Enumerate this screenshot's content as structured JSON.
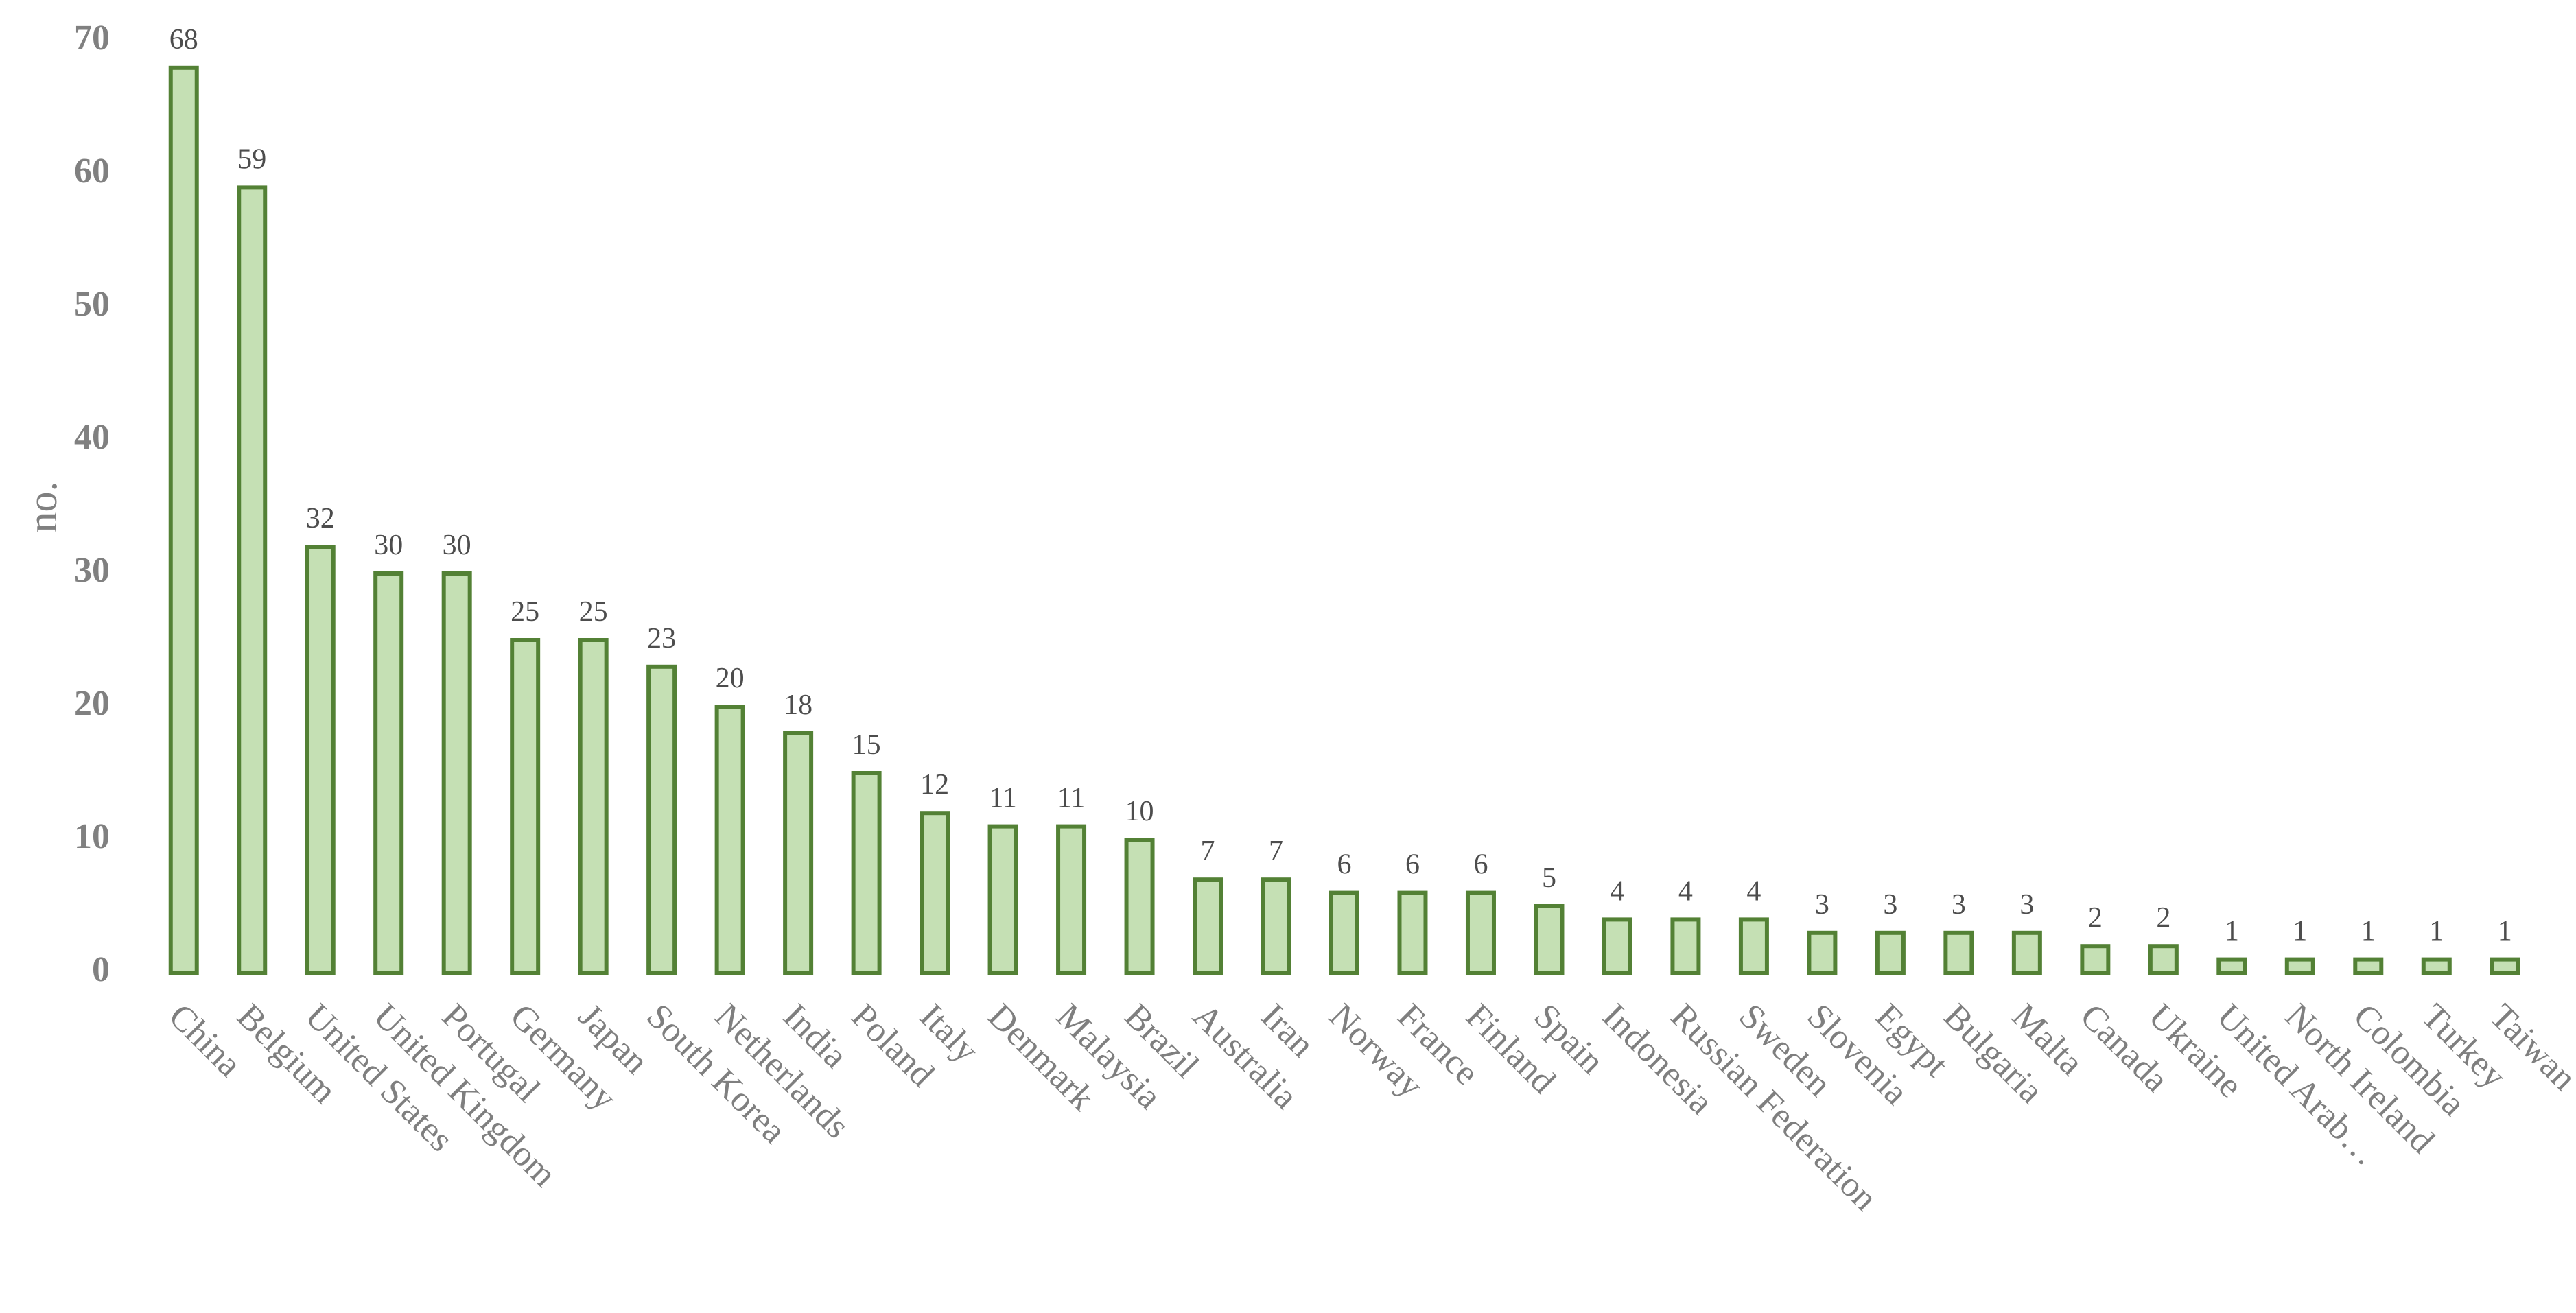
{
  "chart_data": {
    "type": "bar",
    "title": "",
    "xlabel": "",
    "ylabel": "no.",
    "ylim": [
      0,
      70
    ],
    "yticks": [
      0,
      10,
      20,
      30,
      40,
      50,
      60,
      70
    ],
    "grid": false,
    "legend": "none",
    "categories": [
      "China",
      "Belgium",
      "United States",
      "United Kingdom",
      "Portugal",
      "Germany",
      "Japan",
      "South Korea",
      "Netherlands",
      "India",
      "Poland",
      "Italy",
      "Denmark",
      "Malaysia",
      "Brazil",
      "Australia",
      "Iran",
      "Norway",
      "France",
      "Finland",
      "Spain",
      "Indonesia",
      "Russian Federation",
      "Sweden",
      "Slovenia",
      "Egypt",
      "Bulgaria",
      "Malta",
      "Canada",
      "Ukraine",
      "United Arab…",
      "North Ireland",
      "Colombia",
      "Turkey",
      "Taiwan"
    ],
    "values": [
      68,
      59,
      32,
      30,
      30,
      25,
      25,
      23,
      20,
      18,
      15,
      12,
      11,
      11,
      10,
      7,
      7,
      6,
      6,
      6,
      5,
      4,
      4,
      4,
      3,
      3,
      3,
      3,
      2,
      2,
      1,
      1,
      1,
      1,
      1
    ],
    "colors": {
      "bar_fill": "#c5e0b4",
      "bar_stroke": "#538135"
    }
  }
}
